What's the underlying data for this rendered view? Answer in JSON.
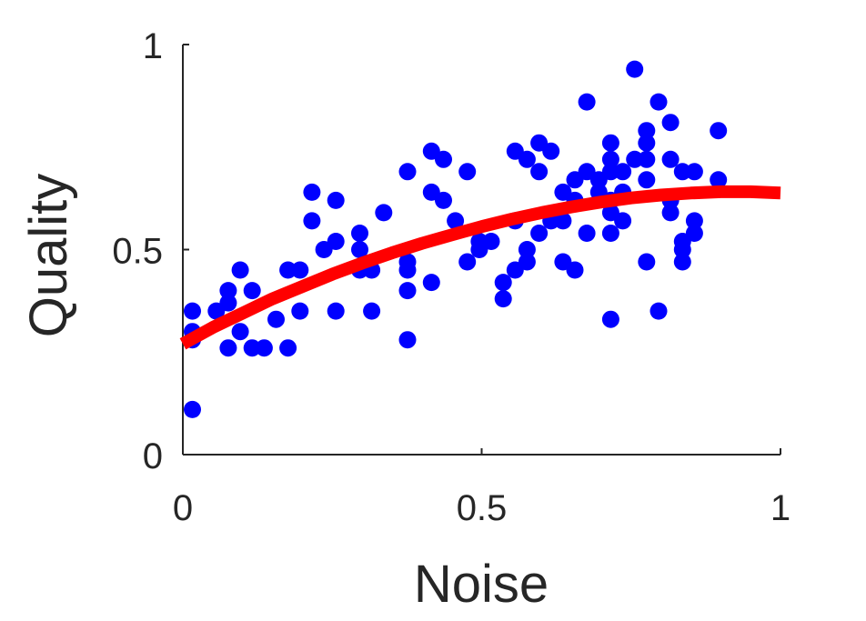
{
  "chart_data": {
    "type": "scatter",
    "xlabel": "Noise",
    "ylabel": "Quality",
    "xlim": [
      0,
      1
    ],
    "ylim": [
      0,
      1
    ],
    "xticks": [
      0,
      0.5,
      1
    ],
    "xtick_labels": [
      "0",
      "0.5",
      "1"
    ],
    "yticks": [
      0,
      0.5,
      1
    ],
    "ytick_labels": [
      "0",
      "0.5",
      "1"
    ],
    "grid": false,
    "point_color": "#0000ff",
    "fit_color": "#ff0000",
    "points": [
      [
        0.016,
        0.11
      ],
      [
        0.016,
        0.28
      ],
      [
        0.016,
        0.3
      ],
      [
        0.016,
        0.35
      ],
      [
        0.056,
        0.35
      ],
      [
        0.076,
        0.26
      ],
      [
        0.076,
        0.37
      ],
      [
        0.076,
        0.4
      ],
      [
        0.096,
        0.3
      ],
      [
        0.096,
        0.45
      ],
      [
        0.116,
        0.26
      ],
      [
        0.116,
        0.4
      ],
      [
        0.136,
        0.26
      ],
      [
        0.156,
        0.33
      ],
      [
        0.176,
        0.26
      ],
      [
        0.176,
        0.45
      ],
      [
        0.196,
        0.35
      ],
      [
        0.196,
        0.45
      ],
      [
        0.216,
        0.57
      ],
      [
        0.216,
        0.64
      ],
      [
        0.236,
        0.5
      ],
      [
        0.256,
        0.35
      ],
      [
        0.256,
        0.52
      ],
      [
        0.256,
        0.62
      ],
      [
        0.296,
        0.45
      ],
      [
        0.296,
        0.5
      ],
      [
        0.296,
        0.54
      ],
      [
        0.316,
        0.35
      ],
      [
        0.316,
        0.45
      ],
      [
        0.336,
        0.59
      ],
      [
        0.376,
        0.28
      ],
      [
        0.376,
        0.4
      ],
      [
        0.376,
        0.45
      ],
      [
        0.376,
        0.47
      ],
      [
        0.376,
        0.69
      ],
      [
        0.416,
        0.42
      ],
      [
        0.416,
        0.64
      ],
      [
        0.416,
        0.74
      ],
      [
        0.436,
        0.62
      ],
      [
        0.436,
        0.72
      ],
      [
        0.456,
        0.57
      ],
      [
        0.476,
        0.47
      ],
      [
        0.476,
        0.69
      ],
      [
        0.496,
        0.5
      ],
      [
        0.496,
        0.52
      ],
      [
        0.516,
        0.52
      ],
      [
        0.536,
        0.38
      ],
      [
        0.536,
        0.42
      ],
      [
        0.556,
        0.45
      ],
      [
        0.556,
        0.57
      ],
      [
        0.556,
        0.74
      ],
      [
        0.576,
        0.47
      ],
      [
        0.576,
        0.5
      ],
      [
        0.576,
        0.72
      ],
      [
        0.596,
        0.54
      ],
      [
        0.596,
        0.69
      ],
      [
        0.596,
        0.76
      ],
      [
        0.616,
        0.57
      ],
      [
        0.616,
        0.74
      ],
      [
        0.636,
        0.47
      ],
      [
        0.636,
        0.57
      ],
      [
        0.636,
        0.64
      ],
      [
        0.656,
        0.45
      ],
      [
        0.656,
        0.62
      ],
      [
        0.656,
        0.67
      ],
      [
        0.676,
        0.54
      ],
      [
        0.676,
        0.69
      ],
      [
        0.676,
        0.86
      ],
      [
        0.696,
        0.64
      ],
      [
        0.696,
        0.67
      ],
      [
        0.716,
        0.33
      ],
      [
        0.716,
        0.54
      ],
      [
        0.716,
        0.59
      ],
      [
        0.716,
        0.62
      ],
      [
        0.716,
        0.69
      ],
      [
        0.716,
        0.72
      ],
      [
        0.716,
        0.76
      ],
      [
        0.736,
        0.57
      ],
      [
        0.736,
        0.64
      ],
      [
        0.736,
        0.69
      ],
      [
        0.756,
        0.72
      ],
      [
        0.756,
        0.94
      ],
      [
        0.776,
        0.47
      ],
      [
        0.776,
        0.67
      ],
      [
        0.776,
        0.72
      ],
      [
        0.776,
        0.76
      ],
      [
        0.776,
        0.79
      ],
      [
        0.796,
        0.35
      ],
      [
        0.796,
        0.86
      ],
      [
        0.816,
        0.59
      ],
      [
        0.816,
        0.62
      ],
      [
        0.816,
        0.72
      ],
      [
        0.816,
        0.81
      ],
      [
        0.836,
        0.47
      ],
      [
        0.836,
        0.5
      ],
      [
        0.836,
        0.52
      ],
      [
        0.836,
        0.69
      ],
      [
        0.856,
        0.54
      ],
      [
        0.856,
        0.57
      ],
      [
        0.856,
        0.69
      ],
      [
        0.896,
        0.67
      ],
      [
        0.896,
        0.79
      ]
    ],
    "fit_curve": {
      "x": [
        0,
        0.05,
        0.1,
        0.15,
        0.2,
        0.25,
        0.3,
        0.35,
        0.4,
        0.45,
        0.5,
        0.55,
        0.6,
        0.65,
        0.7,
        0.75,
        0.8,
        0.85,
        0.9,
        0.95,
        1
      ],
      "y": [
        0.27,
        0.31,
        0.345,
        0.38,
        0.41,
        0.44,
        0.467,
        0.492,
        0.515,
        0.536,
        0.556,
        0.574,
        0.59,
        0.604,
        0.616,
        0.626,
        0.633,
        0.638,
        0.641,
        0.641,
        0.638
      ]
    }
  }
}
